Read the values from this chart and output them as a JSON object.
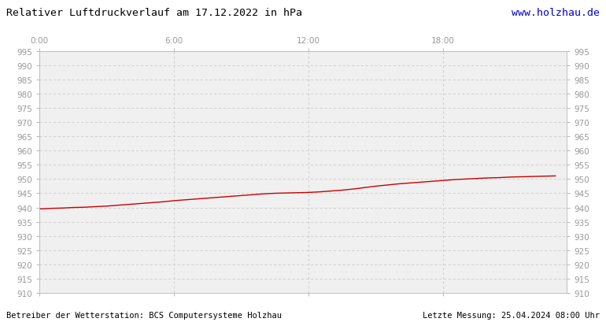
{
  "title": "Relativer Luftdruckverlauf am 17.12.2022 in hPa",
  "url_text": "www.holzhau.de",
  "footer_left": "Betreiber der Wetterstation: BCS Computersysteme Holzhau",
  "footer_right": "Letzte Messung: 25.04.2024 08:00 Uhr",
  "x_tick_labels": [
    "0:00",
    "6:00",
    "12:00",
    "18:00"
  ],
  "x_tick_positions": [
    0,
    6,
    12,
    18
  ],
  "ylim": [
    910,
    995
  ],
  "xlim": [
    0,
    23.5
  ],
  "yticks": [
    910,
    915,
    920,
    925,
    930,
    935,
    940,
    945,
    950,
    955,
    960,
    965,
    970,
    975,
    980,
    985,
    990,
    995
  ],
  "grid_color": "#cccccc",
  "line_color": "#cc0000",
  "bg_color": "#ffffff",
  "plot_bg_color": "#f0f0f0",
  "title_color": "#000000",
  "url_color": "#0000cc",
  "footer_color": "#000000",
  "tick_label_color": "#999999",
  "xtick_label_color": "#999999",
  "pressure_data_x": [
    0.0,
    0.5,
    1.0,
    1.5,
    2.0,
    2.5,
    3.0,
    3.5,
    4.0,
    4.5,
    5.0,
    5.5,
    6.0,
    6.5,
    7.0,
    7.5,
    8.0,
    8.5,
    9.0,
    9.5,
    10.0,
    10.5,
    11.0,
    11.5,
    12.0,
    12.5,
    13.0,
    13.5,
    14.0,
    14.5,
    15.0,
    15.5,
    16.0,
    16.5,
    17.0,
    17.5,
    18.0,
    18.5,
    19.0,
    19.5,
    20.0,
    20.5,
    21.0,
    21.5,
    22.0,
    22.5,
    23.0
  ],
  "pressure_data_y": [
    939.5,
    939.7,
    939.8,
    940.0,
    940.1,
    940.3,
    940.5,
    940.8,
    941.1,
    941.4,
    941.7,
    942.0,
    942.4,
    942.7,
    943.0,
    943.3,
    943.6,
    943.9,
    944.2,
    944.5,
    944.8,
    945.0,
    945.1,
    945.2,
    945.3,
    945.5,
    945.8,
    946.1,
    946.5,
    947.0,
    947.5,
    947.9,
    948.3,
    948.6,
    948.9,
    949.2,
    949.5,
    949.8,
    950.0,
    950.2,
    950.4,
    950.5,
    950.7,
    950.8,
    950.9,
    951.0,
    951.1
  ]
}
